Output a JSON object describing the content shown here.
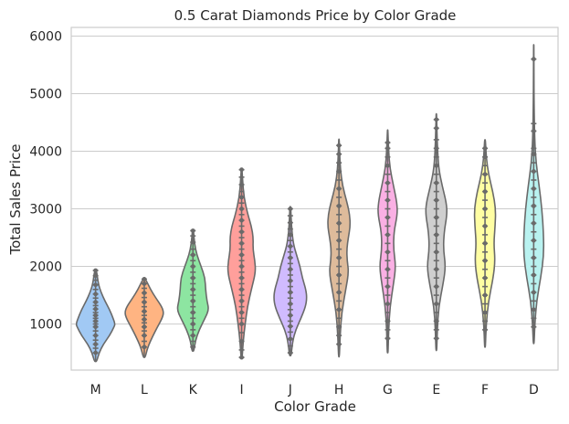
{
  "chart_data": {
    "type": "violin",
    "title": "0.5 Carat Diamonds Price by Color Grade",
    "xlabel": "Color Grade",
    "ylabel": "Total Sales Price",
    "ylim": [
      200,
      6150
    ],
    "yticks": [
      1000,
      2000,
      3000,
      4000,
      5000,
      6000
    ],
    "grid": "horizontal",
    "inner": "stick",
    "categories": [
      "M",
      "L",
      "K",
      "I",
      "J",
      "H",
      "G",
      "E",
      "F",
      "D"
    ],
    "colors": [
      "#a1c9f4",
      "#ffb482",
      "#8de5a1",
      "#ff9f9b",
      "#d0bbff",
      "#debb9b",
      "#fab0e4",
      "#cfcfcf",
      "#fffea3",
      "#b9f2f0"
    ],
    "violins": [
      {
        "name": "M",
        "min": 350,
        "max": 1930,
        "profile": [
          [
            350,
            0.06
          ],
          [
            500,
            0.18
          ],
          [
            650,
            0.4
          ],
          [
            800,
            0.72
          ],
          [
            950,
            0.95
          ],
          [
            1000,
            1.0
          ],
          [
            1100,
            0.9
          ],
          [
            1250,
            0.72
          ],
          [
            1400,
            0.48
          ],
          [
            1550,
            0.28
          ],
          [
            1700,
            0.14
          ],
          [
            1930,
            0.05
          ]
        ],
        "points": [
          500,
          580,
          650,
          720,
          800,
          880,
          950,
          1000,
          1050,
          1100,
          1150,
          1200,
          1260,
          1320,
          1380,
          1450,
          1520,
          1600,
          1680,
          1760,
          1840,
          1930
        ]
      },
      {
        "name": "L",
        "min": 420,
        "max": 1780,
        "profile": [
          [
            420,
            0.05
          ],
          [
            600,
            0.18
          ],
          [
            800,
            0.45
          ],
          [
            950,
            0.68
          ],
          [
            1100,
            0.92
          ],
          [
            1200,
            1.0
          ],
          [
            1300,
            0.9
          ],
          [
            1450,
            0.6
          ],
          [
            1600,
            0.32
          ],
          [
            1780,
            0.07
          ]
        ],
        "points": [
          600,
          700,
          800,
          880,
          950,
          1020,
          1080,
          1150,
          1220,
          1300,
          1380,
          1460,
          1540,
          1620,
          1700,
          1780
        ]
      },
      {
        "name": "K",
        "min": 530,
        "max": 2620,
        "profile": [
          [
            530,
            0.05
          ],
          [
            700,
            0.12
          ],
          [
            900,
            0.32
          ],
          [
            1100,
            0.62
          ],
          [
            1250,
            0.82
          ],
          [
            1400,
            0.72
          ],
          [
            1600,
            0.65
          ],
          [
            1800,
            0.62
          ],
          [
            2000,
            0.42
          ],
          [
            2200,
            0.2
          ],
          [
            2400,
            0.08
          ],
          [
            2620,
            0.03
          ]
        ],
        "points": [
          600,
          700,
          800,
          900,
          1000,
          1100,
          1200,
          1300,
          1400,
          1500,
          1600,
          1700,
          1800,
          1900,
          2000,
          2100,
          2200,
          2300,
          2420,
          2530,
          2620
        ]
      },
      {
        "name": "I",
        "min": 420,
        "max": 3680,
        "profile": [
          [
            420,
            0.03
          ],
          [
            700,
            0.08
          ],
          [
            1000,
            0.18
          ],
          [
            1300,
            0.3
          ],
          [
            1600,
            0.5
          ],
          [
            1900,
            0.72
          ],
          [
            2100,
            0.68
          ],
          [
            2300,
            0.58
          ],
          [
            2500,
            0.6
          ],
          [
            2700,
            0.5
          ],
          [
            2900,
            0.32
          ],
          [
            3200,
            0.12
          ],
          [
            3500,
            0.05
          ],
          [
            3680,
            0.02
          ]
        ],
        "points": [
          420,
          550,
          700,
          850,
          1000,
          1100,
          1200,
          1300,
          1400,
          1500,
          1600,
          1700,
          1800,
          1900,
          2000,
          2100,
          2200,
          2300,
          2400,
          2500,
          2600,
          2700,
          2800,
          2900,
          3000,
          3100,
          3200,
          3300,
          3420,
          3550,
          3680
        ]
      },
      {
        "name": "J",
        "min": 450,
        "max": 3040,
        "profile": [
          [
            450,
            0.04
          ],
          [
            700,
            0.12
          ],
          [
            900,
            0.28
          ],
          [
            1100,
            0.55
          ],
          [
            1300,
            0.78
          ],
          [
            1450,
            0.85
          ],
          [
            1600,
            0.8
          ],
          [
            1800,
            0.62
          ],
          [
            2000,
            0.5
          ],
          [
            2200,
            0.32
          ],
          [
            2400,
            0.15
          ],
          [
            2700,
            0.06
          ],
          [
            3040,
            0.02
          ]
        ],
        "points": [
          500,
          620,
          740,
          860,
          960,
          1050,
          1150,
          1250,
          1350,
          1450,
          1550,
          1650,
          1750,
          1850,
          1950,
          2050,
          2150,
          2250,
          2350,
          2450,
          2550,
          2650,
          2760,
          2880,
          3000
        ]
      },
      {
        "name": "H",
        "min": 430,
        "max": 4210,
        "profile": [
          [
            430,
            0.02
          ],
          [
            800,
            0.06
          ],
          [
            1200,
            0.14
          ],
          [
            1600,
            0.35
          ],
          [
            1900,
            0.5
          ],
          [
            2100,
            0.42
          ],
          [
            2300,
            0.4
          ],
          [
            2500,
            0.48
          ],
          [
            2700,
            0.58
          ],
          [
            2900,
            0.55
          ],
          [
            3100,
            0.42
          ],
          [
            3400,
            0.18
          ],
          [
            3700,
            0.07
          ],
          [
            4000,
            0.03
          ],
          [
            4210,
            0.01
          ]
        ],
        "points": [
          650,
          800,
          950,
          1100,
          1250,
          1400,
          1550,
          1700,
          1850,
          2000,
          2150,
          2300,
          2450,
          2600,
          2750,
          2900,
          3050,
          3200,
          3350,
          3500,
          3650,
          3800,
          3950,
          4100
        ]
      },
      {
        "name": "G",
        "min": 500,
        "max": 4370,
        "profile": [
          [
            500,
            0.02
          ],
          [
            900,
            0.05
          ],
          [
            1300,
            0.12
          ],
          [
            1700,
            0.3
          ],
          [
            2000,
            0.42
          ],
          [
            2300,
            0.3
          ],
          [
            2600,
            0.32
          ],
          [
            2900,
            0.5
          ],
          [
            3100,
            0.48
          ],
          [
            3400,
            0.3
          ],
          [
            3700,
            0.12
          ],
          [
            4000,
            0.05
          ],
          [
            4370,
            0.01
          ]
        ],
        "points": [
          750,
          900,
          1050,
          1200,
          1350,
          1500,
          1650,
          1800,
          1950,
          2100,
          2250,
          2400,
          2550,
          2700,
          2850,
          3000,
          3150,
          3300,
          3450,
          3600,
          3750,
          3900,
          4050,
          4150
        ]
      },
      {
        "name": "E",
        "min": 540,
        "max": 4650,
        "profile": [
          [
            540,
            0.02
          ],
          [
            900,
            0.05
          ],
          [
            1300,
            0.12
          ],
          [
            1700,
            0.35
          ],
          [
            2000,
            0.48
          ],
          [
            2300,
            0.36
          ],
          [
            2600,
            0.4
          ],
          [
            2900,
            0.55
          ],
          [
            3100,
            0.52
          ],
          [
            3400,
            0.3
          ],
          [
            3700,
            0.12
          ],
          [
            4100,
            0.05
          ],
          [
            4650,
            0.01
          ]
        ],
        "points": [
          750,
          900,
          1050,
          1200,
          1350,
          1500,
          1650,
          1800,
          1950,
          2100,
          2250,
          2400,
          2550,
          2700,
          2850,
          3000,
          3150,
          3300,
          3450,
          3600,
          3750,
          3900,
          4050,
          4200,
          4400,
          4550
        ]
      },
      {
        "name": "F",
        "min": 600,
        "max": 4200,
        "profile": [
          [
            600,
            0.02
          ],
          [
            1000,
            0.06
          ],
          [
            1400,
            0.18
          ],
          [
            1800,
            0.42
          ],
          [
            2100,
            0.52
          ],
          [
            2400,
            0.45
          ],
          [
            2700,
            0.52
          ],
          [
            3000,
            0.55
          ],
          [
            3300,
            0.4
          ],
          [
            3600,
            0.18
          ],
          [
            3900,
            0.06
          ],
          [
            4200,
            0.02
          ]
        ],
        "points": [
          900,
          1050,
          1200,
          1350,
          1500,
          1650,
          1800,
          1950,
          2100,
          2250,
          2400,
          2550,
          2700,
          2850,
          3000,
          3150,
          3300,
          3450,
          3600,
          3750,
          3900,
          4050
        ]
      },
      {
        "name": "D",
        "min": 660,
        "max": 5850,
        "profile": [
          [
            660,
            0.02
          ],
          [
            1000,
            0.06
          ],
          [
            1400,
            0.15
          ],
          [
            1800,
            0.36
          ],
          [
            2200,
            0.52
          ],
          [
            2600,
            0.5
          ],
          [
            3000,
            0.42
          ],
          [
            3400,
            0.28
          ],
          [
            3800,
            0.12
          ],
          [
            4200,
            0.05
          ],
          [
            4800,
            0.02
          ],
          [
            5300,
            0.01
          ],
          [
            5850,
            0.005
          ]
        ],
        "points": [
          950,
          1100,
          1250,
          1400,
          1550,
          1700,
          1850,
          2000,
          2150,
          2300,
          2450,
          2600,
          2750,
          2900,
          3050,
          3200,
          3350,
          3500,
          3650,
          3800,
          3950,
          4050,
          4350,
          4480,
          5600
        ]
      }
    ]
  }
}
